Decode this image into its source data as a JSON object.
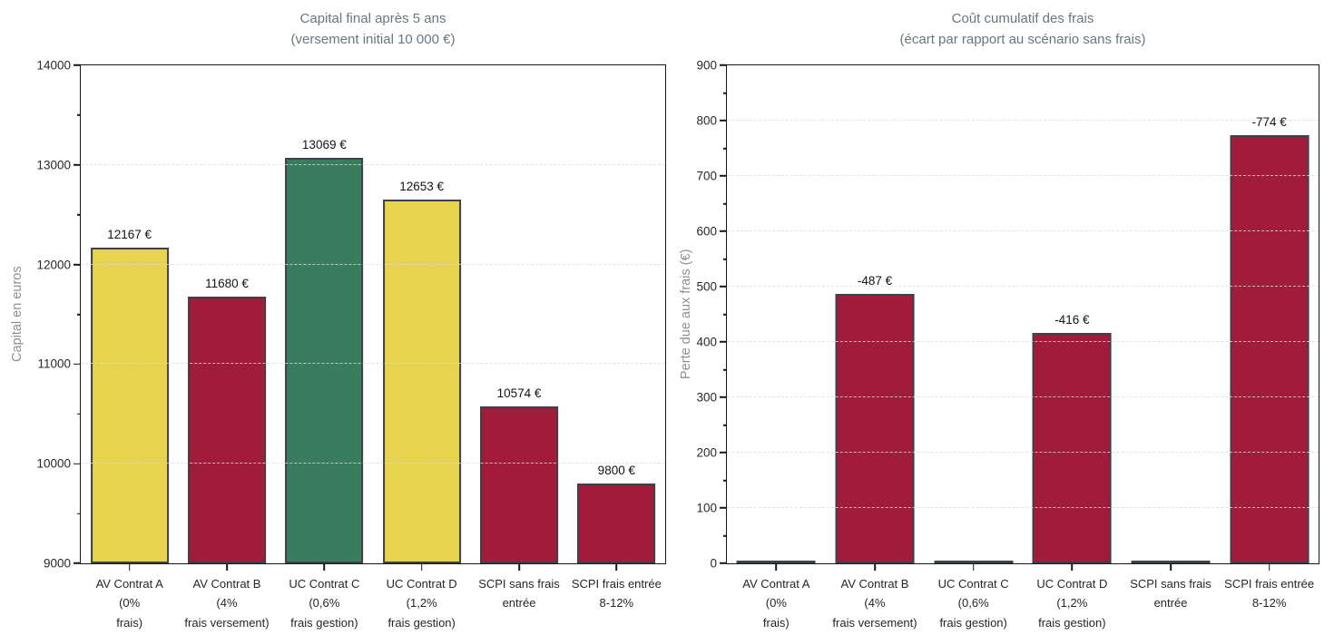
{
  "page": {
    "background": "#ffffff"
  },
  "colors": {
    "bar_yellow": "#e8d34f",
    "bar_green": "#3a7d5e",
    "bar_red": "#a11c3a",
    "bar_edge": "#3d4248",
    "spine": "#15181b",
    "grid": "#dbdbdb",
    "title_text": "#6d757b",
    "axis_label_text": "#8a9196",
    "tick_text": "#26292c",
    "value_text": "#121416"
  },
  "chart_data": [
    {
      "type": "bar",
      "title": "Capital final après 5 ans",
      "subtitle": "(versement initial 10 000 €)",
      "ylabel": "Capital en euros",
      "xlabel": "",
      "legend_position": "none",
      "grid": true,
      "categories": [
        [
          "AV Contrat A",
          "(0%",
          "frais)"
        ],
        [
          "AV Contrat B",
          "(4%",
          "frais versement)"
        ],
        [
          "UC Contrat C",
          "(0,6%",
          "frais gestion)"
        ],
        [
          "UC Contrat D",
          "(1,2%",
          "frais gestion)"
        ],
        [
          "SCPI sans frais",
          "entrée"
        ],
        [
          "SCPI frais entrée",
          "8-12%"
        ]
      ],
      "values": [
        12167,
        11680,
        13069,
        12653,
        10574,
        9800
      ],
      "bar_labels": [
        "12167 €",
        "11680 €",
        "13069 €",
        "12653 €",
        "10574 €",
        "9800 €"
      ],
      "bar_colors": [
        "#e8d34f",
        "#a11c3a",
        "#3a7d5e",
        "#e8d34f",
        "#a11c3a",
        "#a11c3a"
      ],
      "ylim": [
        9000,
        14000
      ],
      "yticks": [
        9000,
        10000,
        11000,
        12000,
        13000,
        14000
      ]
    },
    {
      "type": "bar",
      "title": "Coût cumulatif des frais",
      "subtitle": "(écart par rapport au scénario sans frais)",
      "ylabel": "Perte due aux frais (€)",
      "xlabel": "",
      "legend_position": "none",
      "grid": true,
      "categories": [
        [
          "AV Contrat A",
          "(0%",
          "frais)"
        ],
        [
          "AV Contrat B",
          "(4%",
          "frais versement)"
        ],
        [
          "UC Contrat C",
          "(0,6%",
          "frais gestion)"
        ],
        [
          "UC Contrat D",
          "(1,2%",
          "frais gestion)"
        ],
        [
          "SCPI sans frais",
          "entrée"
        ],
        [
          "SCPI frais entrée",
          "8-12%"
        ]
      ],
      "values": [
        0,
        487,
        0,
        416,
        0,
        774
      ],
      "bar_labels": [
        "",
        "-487 €",
        "",
        "-416 €",
        "",
        "-774 €"
      ],
      "bar_colors": [
        "#a11c3a",
        "#a11c3a",
        "#a11c3a",
        "#a11c3a",
        "#a11c3a",
        "#a11c3a"
      ],
      "ylim": [
        0,
        900
      ],
      "yticks": [
        0,
        100,
        200,
        300,
        400,
        500,
        600,
        700,
        800,
        900
      ]
    }
  ]
}
